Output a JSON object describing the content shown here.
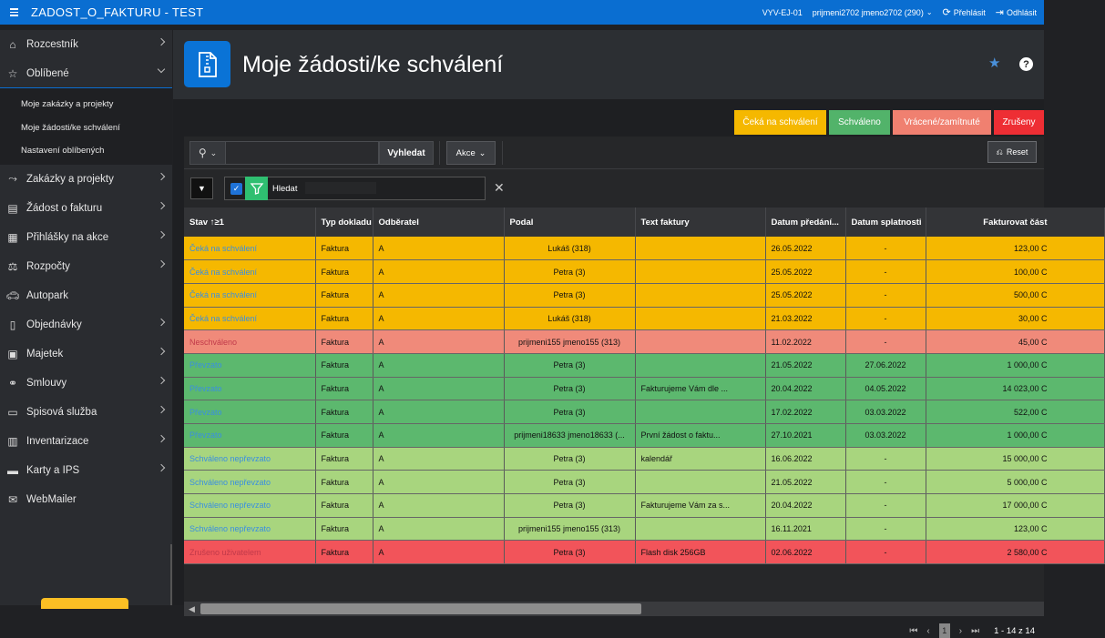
{
  "topbar": {
    "app_title": "ZADOST_O_FAKTURU - TEST",
    "env": "VYV-EJ-01",
    "user": "prijmeni2702 jmeno2702 (290)",
    "overview": "Přehlásit",
    "logout": "Odhlásit"
  },
  "sidebar": {
    "items": [
      {
        "label": "Rozcestník",
        "icon": "home-icon"
      },
      {
        "label": "Oblíbené",
        "icon": "star-outline-icon"
      },
      {
        "label": "Zakázky a projekty",
        "icon": "project-icon"
      },
      {
        "label": "Žádost o fakturu",
        "icon": "invoice-icon"
      },
      {
        "label": "Přihlášky na akce",
        "icon": "calendar-icon"
      },
      {
        "label": "Rozpočty",
        "icon": "scale-icon"
      },
      {
        "label": "Autopark",
        "icon": "car-icon"
      },
      {
        "label": "Objednávky",
        "icon": "clipboard-icon"
      },
      {
        "label": "Majetek",
        "icon": "box-icon"
      },
      {
        "label": "Smlouvy",
        "icon": "handshake-icon"
      },
      {
        "label": "Spisová služba",
        "icon": "document-icon"
      },
      {
        "label": "Inventarizace",
        "icon": "inventory-icon"
      },
      {
        "label": "Karty a IPS",
        "icon": "card-icon"
      },
      {
        "label": "WebMailer",
        "icon": "mail-icon"
      }
    ],
    "favorites": [
      "Moje zakázky a projekty",
      "Moje žádosti/ke schválení",
      "Nastavení oblíbených"
    ]
  },
  "header": {
    "title": "Moje žádosti/ke schválení"
  },
  "status_buttons": [
    {
      "label": "Čeká na schválení",
      "color": "#f5b800"
    },
    {
      "label": "Schváleno",
      "color": "#52b36a"
    },
    {
      "label": "Vrácené/zamítnuté",
      "color": "#f08070"
    },
    {
      "label": "Zrušeny",
      "color": "#ee2e34"
    }
  ],
  "toolbar": {
    "search_value": "",
    "search_button": "Vyhledat",
    "actions_button": "Akce",
    "reset_button": "Reset"
  },
  "filter": {
    "label": "Hledat"
  },
  "table": {
    "columns": [
      "Stav ↑≥1",
      "Typ dokladu",
      "Odběratel",
      "Podal",
      "Text faktury",
      "Datum předání...",
      "Datum splatnosti",
      "Fakturovat část"
    ],
    "rows": [
      {
        "stav": "Čeká na schválení",
        "typ": "Faktura",
        "odb": "A",
        "podal": "Lukáš (318)",
        "text": "",
        "predani": "26.05.2022",
        "splatnost": "-",
        "castka": "123,00 C",
        "bg": "#f5b800",
        "stav_color": "blue"
      },
      {
        "stav": "Čeká na schválení",
        "typ": "Faktura",
        "odb": "A",
        "podal": "Petra (3)",
        "text": "",
        "predani": "25.05.2022",
        "splatnost": "-",
        "castka": "100,00 C",
        "bg": "#f5b800",
        "stav_color": "blue"
      },
      {
        "stav": "Čeká na schválení",
        "typ": "Faktura",
        "odb": "A",
        "podal": "Petra (3)",
        "text": "",
        "predani": "25.05.2022",
        "splatnost": "-",
        "castka": "500,00 C",
        "bg": "#f5b800",
        "stav_color": "blue"
      },
      {
        "stav": "Čeká na schválení",
        "typ": "Faktura",
        "odb": "A",
        "podal": "Lukáš (318)",
        "text": "",
        "predani": "21.03.2022",
        "splatnost": "-",
        "castka": "30,00 C",
        "bg": "#f5b800",
        "stav_color": "blue"
      },
      {
        "stav": "Neschváleno",
        "typ": "Faktura",
        "odb": "A",
        "podal": "prijmeni155 jmeno155 (313)",
        "text": "",
        "predani": "11.02.2022",
        "splatnost": "-",
        "castka": "45,00 C",
        "bg": "#f08a7a",
        "stav_color": "pink"
      },
      {
        "stav": "Převzato",
        "typ": "Faktura",
        "odb": "A",
        "podal": "Petra (3)",
        "text": "",
        "predani": "21.05.2022",
        "splatnost": "27.06.2022",
        "castka": "1 000,00 C",
        "bg": "#5cb86e",
        "stav_color": "blue"
      },
      {
        "stav": "Převzato",
        "typ": "Faktura",
        "odb": "A",
        "podal": "Petra (3)",
        "text": "Fakturujeme Vám dle ...",
        "predani": "20.04.2022",
        "splatnost": "04.05.2022",
        "castka": "14 023,00 C",
        "bg": "#5cb86e",
        "stav_color": "blue"
      },
      {
        "stav": "Převzato",
        "typ": "Faktura",
        "odb": "A",
        "podal": "Petra (3)",
        "text": "",
        "predani": "17.02.2022",
        "splatnost": "03.03.2022",
        "castka": "522,00 C",
        "bg": "#5cb86e",
        "stav_color": "blue"
      },
      {
        "stav": "Převzato",
        "typ": "Faktura",
        "odb": "A",
        "podal": "prijmeni18633 jmeno18633 (...",
        "text": "První žádost o faktu...",
        "predani": "27.10.2021",
        "splatnost": "03.03.2022",
        "castka": "1 000,00 C",
        "bg": "#5cb86e",
        "stav_color": "blue"
      },
      {
        "stav": "Schváleno nepřevzato",
        "typ": "Faktura",
        "odb": "A",
        "podal": "Petra (3)",
        "text": "kalendář",
        "predani": "16.06.2022",
        "splatnost": "-",
        "castka": "15 000,00 C",
        "bg": "#a8d57e",
        "stav_color": "blue"
      },
      {
        "stav": "Schváleno nepřevzato",
        "typ": "Faktura",
        "odb": "A",
        "podal": "Petra (3)",
        "text": "",
        "predani": "21.05.2022",
        "splatnost": "-",
        "castka": "5 000,00 C",
        "bg": "#a8d57e",
        "stav_color": "blue"
      },
      {
        "stav": "Schváleno nepřevzato",
        "typ": "Faktura",
        "odb": "A",
        "podal": "Petra (3)",
        "text": "Fakturujeme Vám za s...",
        "predani": "20.04.2022",
        "splatnost": "-",
        "castka": "17 000,00 C",
        "bg": "#a8d57e",
        "stav_color": "blue"
      },
      {
        "stav": "Schváleno nepřevzato",
        "typ": "Faktura",
        "odb": "A",
        "podal": "prijmeni155 jmeno155 (313)",
        "text": "",
        "predani": "16.11.2021",
        "splatnost": "-",
        "castka": "123,00 C",
        "bg": "#a8d57e",
        "stav_color": "blue"
      },
      {
        "stav": "Zrušeno uživatelem",
        "typ": "Faktura",
        "odb": "A",
        "podal": "Petra (3)",
        "text": "Flash disk 256GB",
        "predani": "02.06.2022",
        "splatnost": "-",
        "castka": "2 580,00 C",
        "bg": "#f2545a",
        "stav_color": "pink"
      }
    ]
  },
  "pagination": {
    "current_page": "1",
    "range": "1 - 14 z 14"
  }
}
